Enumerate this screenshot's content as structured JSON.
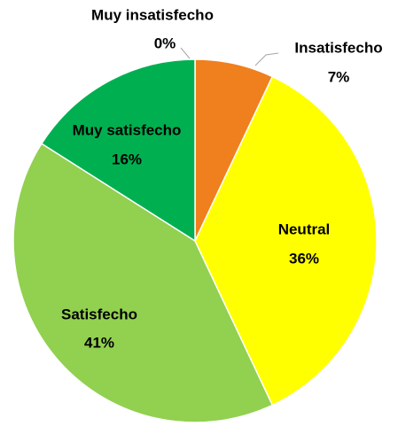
{
  "chart_data": {
    "type": "pie",
    "categories": [
      "Muy insatisfecho",
      "Insatisfecho",
      "Neutral",
      "Satisfecho",
      "Muy satisfecho"
    ],
    "values": [
      0,
      7,
      36,
      41,
      16
    ],
    "value_labels": [
      "0%",
      "7%",
      "36%",
      "41%",
      "16%"
    ],
    "colors": [
      "#C00000",
      "#F07F1E",
      "#FFFF00",
      "#92D050",
      "#00B050"
    ]
  }
}
